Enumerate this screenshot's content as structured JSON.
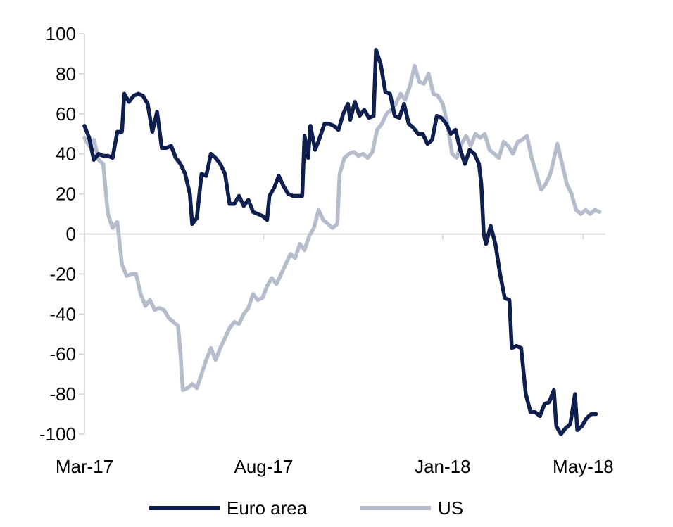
{
  "chart_data": {
    "type": "line",
    "title": "",
    "xlabel": "",
    "ylabel": "",
    "ylim": [
      -100,
      100
    ],
    "yticks": [
      100,
      80,
      60,
      40,
      20,
      0,
      -20,
      -40,
      -60,
      -80,
      -100
    ],
    "ytick_labels": [
      "100",
      "80",
      "60",
      "40",
      "20",
      "0",
      "-20",
      "-40",
      "-60",
      "-80",
      "-100"
    ],
    "xrange": [
      "2017-03-01",
      "2018-05-20"
    ],
    "xticks": [
      {
        "date": "2017-03-01",
        "label": "Mar-17"
      },
      {
        "date": "2017-08-01",
        "label": "Aug-17"
      },
      {
        "date": "2018-01-01",
        "label": "Jan-18"
      },
      {
        "date": "2018-05-01",
        "label": "May-18"
      }
    ],
    "grid": false,
    "legend": "bottom",
    "series": [
      {
        "name": "Euro area",
        "color": "#0d1e4f",
        "points": [
          [
            "2017-03-01",
            54
          ],
          [
            "2017-03-05",
            48
          ],
          [
            "2017-03-09",
            37
          ],
          [
            "2017-03-13",
            40
          ],
          [
            "2017-03-17",
            39
          ],
          [
            "2017-03-21",
            39
          ],
          [
            "2017-03-25",
            38
          ],
          [
            "2017-03-29",
            51
          ],
          [
            "2017-04-02",
            51
          ],
          [
            "2017-04-04",
            70
          ],
          [
            "2017-04-08",
            66
          ],
          [
            "2017-04-12",
            69
          ],
          [
            "2017-04-16",
            70
          ],
          [
            "2017-04-20",
            69
          ],
          [
            "2017-04-24",
            65
          ],
          [
            "2017-04-28",
            51
          ],
          [
            "2017-05-02",
            61
          ],
          [
            "2017-05-06",
            43
          ],
          [
            "2017-05-10",
            43
          ],
          [
            "2017-05-14",
            44
          ],
          [
            "2017-05-18",
            38
          ],
          [
            "2017-05-22",
            35
          ],
          [
            "2017-05-26",
            30
          ],
          [
            "2017-05-30",
            20
          ],
          [
            "2017-06-01",
            5
          ],
          [
            "2017-06-05",
            8
          ],
          [
            "2017-06-09",
            30
          ],
          [
            "2017-06-13",
            29
          ],
          [
            "2017-06-17",
            40
          ],
          [
            "2017-06-21",
            38
          ],
          [
            "2017-06-25",
            35
          ],
          [
            "2017-06-29",
            30
          ],
          [
            "2017-07-03",
            15
          ],
          [
            "2017-07-07",
            15
          ],
          [
            "2017-07-11",
            19
          ],
          [
            "2017-07-15",
            14
          ],
          [
            "2017-07-19",
            17
          ],
          [
            "2017-07-23",
            11
          ],
          [
            "2017-07-27",
            10
          ],
          [
            "2017-07-31",
            9
          ],
          [
            "2017-08-04",
            7
          ],
          [
            "2017-08-06",
            19
          ],
          [
            "2017-08-10",
            23
          ],
          [
            "2017-08-14",
            29
          ],
          [
            "2017-08-18",
            24
          ],
          [
            "2017-08-22",
            20
          ],
          [
            "2017-08-26",
            19
          ],
          [
            "2017-08-30",
            19
          ],
          [
            "2017-09-03",
            19
          ],
          [
            "2017-09-05",
            49
          ],
          [
            "2017-09-08",
            38
          ],
          [
            "2017-09-10",
            54
          ],
          [
            "2017-09-14",
            42
          ],
          [
            "2017-09-18",
            48
          ],
          [
            "2017-09-22",
            55
          ],
          [
            "2017-09-26",
            55
          ],
          [
            "2017-09-30",
            54
          ],
          [
            "2017-10-04",
            52
          ],
          [
            "2017-10-08",
            60
          ],
          [
            "2017-10-12",
            65
          ],
          [
            "2017-10-14",
            57
          ],
          [
            "2017-10-18",
            66
          ],
          [
            "2017-10-22",
            59
          ],
          [
            "2017-10-26",
            62
          ],
          [
            "2017-10-30",
            58
          ],
          [
            "2017-11-03",
            59
          ],
          [
            "2017-11-05",
            92
          ],
          [
            "2017-11-09",
            85
          ],
          [
            "2017-11-13",
            71
          ],
          [
            "2017-11-17",
            70
          ],
          [
            "2017-11-21",
            59
          ],
          [
            "2017-11-25",
            58
          ],
          [
            "2017-11-29",
            65
          ],
          [
            "2017-12-03",
            55
          ],
          [
            "2017-12-07",
            53
          ],
          [
            "2017-12-11",
            50
          ],
          [
            "2017-12-15",
            50
          ],
          [
            "2017-12-19",
            45
          ],
          [
            "2017-12-23",
            47
          ],
          [
            "2017-12-27",
            59
          ],
          [
            "2017-12-31",
            58
          ],
          [
            "2018-01-04",
            55
          ],
          [
            "2018-01-08",
            50
          ],
          [
            "2018-01-12",
            52
          ],
          [
            "2018-01-16",
            42
          ],
          [
            "2018-01-20",
            35
          ],
          [
            "2018-01-24",
            42
          ],
          [
            "2018-01-28",
            40
          ],
          [
            "2018-02-01",
            35
          ],
          [
            "2018-02-03",
            25
          ],
          [
            "2018-02-05",
            0
          ],
          [
            "2018-02-07",
            -5
          ],
          [
            "2018-02-11",
            4
          ],
          [
            "2018-02-15",
            -5
          ],
          [
            "2018-02-19",
            -20
          ],
          [
            "2018-02-23",
            -32
          ],
          [
            "2018-02-27",
            -33
          ],
          [
            "2018-03-01",
            -57
          ],
          [
            "2018-03-05",
            -56
          ],
          [
            "2018-03-09",
            -57
          ],
          [
            "2018-03-13",
            -80
          ],
          [
            "2018-03-17",
            -89
          ],
          [
            "2018-03-21",
            -89
          ],
          [
            "2018-03-25",
            -91
          ],
          [
            "2018-03-29",
            -85
          ],
          [
            "2018-04-02",
            -84
          ],
          [
            "2018-04-06",
            -78
          ],
          [
            "2018-04-08",
            -96
          ],
          [
            "2018-04-12",
            -100
          ],
          [
            "2018-04-16",
            -97
          ],
          [
            "2018-04-20",
            -95
          ],
          [
            "2018-04-24",
            -80
          ],
          [
            "2018-04-26",
            -98
          ],
          [
            "2018-04-30",
            -96
          ],
          [
            "2018-05-04",
            -92
          ],
          [
            "2018-05-08",
            -90
          ],
          [
            "2018-05-12",
            -90
          ]
        ]
      },
      {
        "name": "US",
        "color": "#b5bccb",
        "points": [
          [
            "2017-03-01",
            48
          ],
          [
            "2017-03-05",
            44
          ],
          [
            "2017-03-09",
            47
          ],
          [
            "2017-03-13",
            37
          ],
          [
            "2017-03-17",
            35
          ],
          [
            "2017-03-21",
            10
          ],
          [
            "2017-03-25",
            3
          ],
          [
            "2017-03-29",
            6
          ],
          [
            "2017-04-02",
            -15
          ],
          [
            "2017-04-06",
            -21
          ],
          [
            "2017-04-10",
            -20
          ],
          [
            "2017-04-14",
            -20
          ],
          [
            "2017-04-18",
            -30
          ],
          [
            "2017-04-22",
            -36
          ],
          [
            "2017-04-26",
            -33
          ],
          [
            "2017-04-30",
            -38
          ],
          [
            "2017-05-04",
            -37
          ],
          [
            "2017-05-08",
            -38
          ],
          [
            "2017-05-12",
            -42
          ],
          [
            "2017-05-16",
            -44
          ],
          [
            "2017-05-20",
            -46
          ],
          [
            "2017-05-22",
            -60
          ],
          [
            "2017-05-24",
            -78
          ],
          [
            "2017-05-28",
            -77
          ],
          [
            "2017-06-01",
            -75
          ],
          [
            "2017-06-05",
            -77
          ],
          [
            "2017-06-09",
            -70
          ],
          [
            "2017-06-13",
            -63
          ],
          [
            "2017-06-17",
            -57
          ],
          [
            "2017-06-21",
            -63
          ],
          [
            "2017-06-25",
            -57
          ],
          [
            "2017-06-29",
            -52
          ],
          [
            "2017-07-03",
            -47
          ],
          [
            "2017-07-07",
            -44
          ],
          [
            "2017-07-11",
            -45
          ],
          [
            "2017-07-15",
            -40
          ],
          [
            "2017-07-19",
            -37
          ],
          [
            "2017-07-23",
            -30
          ],
          [
            "2017-07-27",
            -33
          ],
          [
            "2017-07-31",
            -32
          ],
          [
            "2017-08-04",
            -26
          ],
          [
            "2017-08-08",
            -22
          ],
          [
            "2017-08-12",
            -25
          ],
          [
            "2017-08-16",
            -20
          ],
          [
            "2017-08-20",
            -15
          ],
          [
            "2017-08-24",
            -10
          ],
          [
            "2017-08-28",
            -12
          ],
          [
            "2017-09-01",
            -5
          ],
          [
            "2017-09-05",
            -8
          ],
          [
            "2017-09-09",
            -1
          ],
          [
            "2017-09-13",
            3
          ],
          [
            "2017-09-17",
            12
          ],
          [
            "2017-09-21",
            7
          ],
          [
            "2017-09-25",
            5
          ],
          [
            "2017-09-29",
            3
          ],
          [
            "2017-10-03",
            5
          ],
          [
            "2017-10-05",
            30
          ],
          [
            "2017-10-09",
            38
          ],
          [
            "2017-10-13",
            40
          ],
          [
            "2017-10-17",
            41
          ],
          [
            "2017-10-21",
            39
          ],
          [
            "2017-10-25",
            40
          ],
          [
            "2017-10-29",
            38
          ],
          [
            "2017-11-02",
            41
          ],
          [
            "2017-11-06",
            52
          ],
          [
            "2017-11-10",
            55
          ],
          [
            "2017-11-14",
            60
          ],
          [
            "2017-11-18",
            62
          ],
          [
            "2017-11-22",
            65
          ],
          [
            "2017-11-26",
            70
          ],
          [
            "2017-11-30",
            67
          ],
          [
            "2017-12-04",
            74
          ],
          [
            "2017-12-08",
            84
          ],
          [
            "2017-12-12",
            76
          ],
          [
            "2017-12-16",
            75
          ],
          [
            "2017-12-20",
            80
          ],
          [
            "2017-12-24",
            70
          ],
          [
            "2017-12-28",
            69
          ],
          [
            "2018-01-01",
            65
          ],
          [
            "2018-01-05",
            55
          ],
          [
            "2018-01-09",
            40
          ],
          [
            "2018-01-13",
            38
          ],
          [
            "2018-01-17",
            45
          ],
          [
            "2018-01-21",
            49
          ],
          [
            "2018-01-25",
            44
          ],
          [
            "2018-01-29",
            50
          ],
          [
            "2018-02-02",
            48
          ],
          [
            "2018-02-06",
            50
          ],
          [
            "2018-02-10",
            42
          ],
          [
            "2018-02-14",
            40
          ],
          [
            "2018-02-18",
            38
          ],
          [
            "2018-02-22",
            46
          ],
          [
            "2018-02-26",
            44
          ],
          [
            "2018-03-02",
            40
          ],
          [
            "2018-03-06",
            46
          ],
          [
            "2018-03-10",
            47
          ],
          [
            "2018-03-14",
            49
          ],
          [
            "2018-03-18",
            38
          ],
          [
            "2018-03-22",
            30
          ],
          [
            "2018-03-26",
            22
          ],
          [
            "2018-03-30",
            25
          ],
          [
            "2018-04-03",
            30
          ],
          [
            "2018-04-07",
            40
          ],
          [
            "2018-04-09",
            45
          ],
          [
            "2018-04-13",
            35
          ],
          [
            "2018-04-17",
            25
          ],
          [
            "2018-04-21",
            20
          ],
          [
            "2018-04-25",
            12
          ],
          [
            "2018-04-29",
            10
          ],
          [
            "2018-05-03",
            12
          ],
          [
            "2018-05-07",
            10
          ],
          [
            "2018-05-11",
            12
          ],
          [
            "2018-05-15",
            11
          ]
        ]
      }
    ]
  }
}
